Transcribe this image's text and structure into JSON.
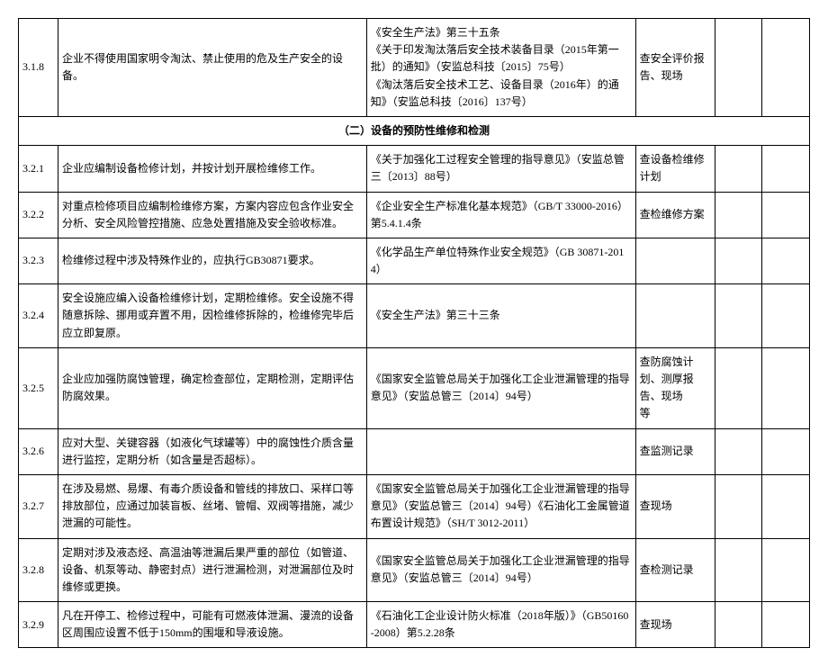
{
  "rows": [
    {
      "num": "3.1.8",
      "content": "企业不得使用国家明令淘汰、禁止使用的危及生产安全的设备。",
      "basis": "《安全生产法》第三十五条\n《关于印发淘汰落后安全技术装备目录（2015年第一批）的通知》（安监总科技〔2015〕75号）\n《淘汰落后安全技术工艺、设备目录（2016年）的通知》（安监总科技〔2016〕137号）",
      "check": "查安全评价报告、现场"
    },
    {
      "section": "（二）设备的预防性维修和检测"
    },
    {
      "num": "3.2.1",
      "content": "企业应编制设备检修计划，并按计划开展检维修工作。",
      "basis": "《关于加强化工过程安全管理的指导意见》（安监总管三〔2013〕88号）",
      "check": "查设备检维修计划"
    },
    {
      "num": "3.2.2",
      "content": "对重点检修项目应编制检维修方案，方案内容应包含作业安全分析、安全风险管控措施、应急处置措施及安全验收标准。",
      "basis": "《企业安全生产标准化基本规范》（GB/T 33000-2016）第5.4.1.4条",
      "check": "查检维修方案"
    },
    {
      "num": "3.2.3",
      "content": "检维修过程中涉及特殊作业的，应执行GB30871要求。",
      "basis": "《化学品生产单位特殊作业安全规范》（GB 30871-2014）",
      "check": ""
    },
    {
      "num": "3.2.4",
      "content": "安全设施应编入设备检维修计划，定期检维修。安全设施不得随意拆除、挪用或弃置不用，因检维修拆除的，检维修完毕后应立即复原。",
      "basis": "《安全生产法》第三十三条",
      "check": ""
    },
    {
      "num": "3.2.5",
      "content": "企业应加强防腐蚀管理，确定检查部位，定期检测，定期评估防腐效果。",
      "basis": "《国家安全监管总局关于加强化工企业泄漏管理的指导意见》（安监总管三〔2014〕94号）",
      "check": "查防腐蚀计划、测厚报告、现场\n等"
    },
    {
      "num": "3.2.6",
      "content": "应对大型、关键容器（如液化气球罐等）中的腐蚀性介质含量进行监控，定期分析（如含量是否超标）。",
      "basis": "",
      "check": "查监测记录"
    },
    {
      "num": "3.2.7",
      "content": "在涉及易燃、易爆、有毒介质设备和管线的排放口、采样口等排放部位，应通过加装盲板、丝堵、管帽、双阀等措施，减少泄漏的可能性。",
      "basis": "《国家安全监管总局关于加强化工企业泄漏管理的指导意见》（安监总管三〔2014〕94号）《石油化工金属管道布置设计规范》（SH/T 3012-2011）",
      "check": "查现场"
    },
    {
      "num": "3.2.8",
      "content": "定期对涉及液态烃、高温油等泄漏后果严重的部位（如管道、设备、机泵等动、静密封点）进行泄漏检测，对泄漏部位及时维修或更换。",
      "basis": "《国家安全监管总局关于加强化工企业泄漏管理的指导意见》（安监总管三〔2014〕94号）",
      "check": "查检测记录"
    },
    {
      "num": "3.2.9",
      "content": "凡在开停工、检修过程中，可能有可燃液体泄漏、漫流的设备区周围应设置不低于150mm的围堰和导液设施。",
      "basis": "《石油化工企业设计防火标准（2018年版）》（GB50160-2008）第5.2.28条",
      "check": "查现场"
    }
  ]
}
